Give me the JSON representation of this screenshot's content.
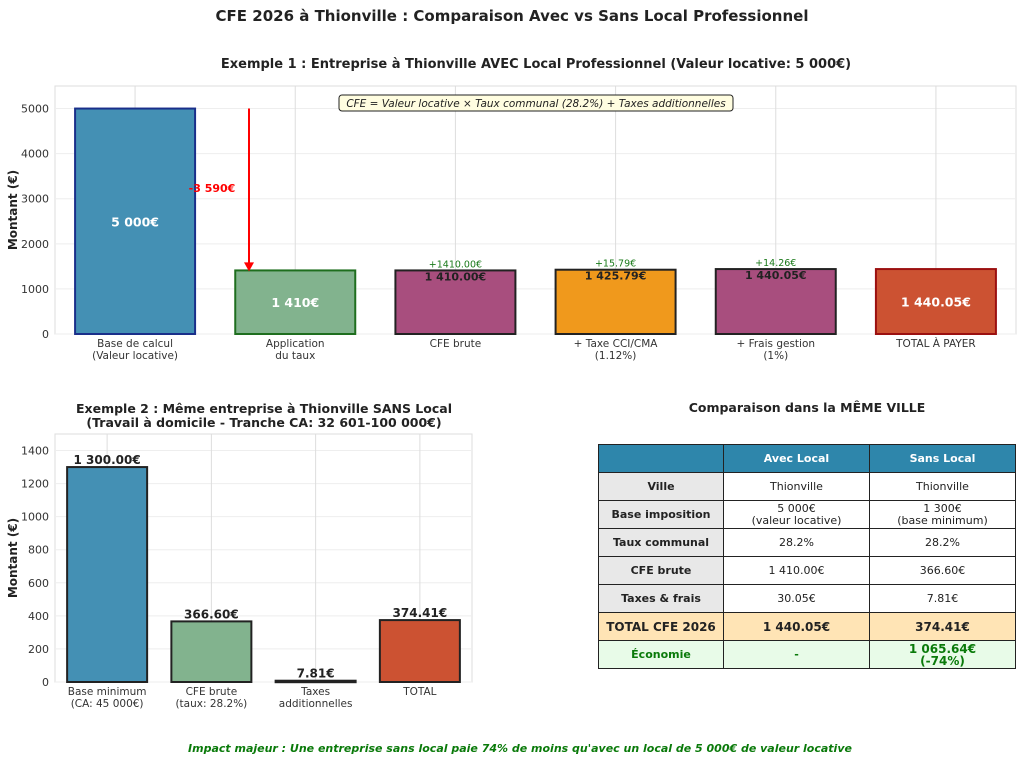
{
  "suptitle": "CFE 2026 à Thionville : Comparaison Avec vs Sans Local Professionnel",
  "footer_note": "Impact majeur : Une entreprise sans local paie 74% de moins qu'avec un local de 5 000€ de valeur locative",
  "chart_data": [
    {
      "type": "bar",
      "title": "Exemple 1 : Entreprise à Thionville AVEC Local Professionnel (Valeur locative: 5 000€)",
      "ylabel": "Montant (€)",
      "ylim": [
        0,
        5500
      ],
      "yticks": [
        "0",
        "1000",
        "2000",
        "3000",
        "4000",
        "5000"
      ],
      "grid": true,
      "categories": [
        "Base de calcul\n(Valeur locative)",
        "Application\ndu taux",
        "CFE brute",
        "+ Taxe CCI/CMA\n(1.12%)",
        "+ Frais gestion\n(1%)",
        "TOTAL À PAYER"
      ],
      "values": [
        5000,
        1410,
        1410,
        1425.79,
        1440.05,
        1440.05
      ],
      "colors": [
        "#4490b4",
        "#82b38e",
        "#a84e7e",
        "#f0991c",
        "#a84e7e",
        "#cc5232"
      ],
      "edge_colors": [
        "#1a2f8a",
        "#1e6e1e",
        "#222222",
        "#222222",
        "#222222",
        "#9b1010"
      ],
      "value_labels": [
        "5 000€",
        "1 410€",
        "1 410.00€",
        "1 425.79€",
        "1 440.05€",
        "1 440.05€"
      ],
      "increment_labels": [
        "",
        "",
        "+1410.00€",
        "+15.79€",
        "+14.26€",
        ""
      ],
      "arrow": {
        "from": 5000,
        "to": 1410,
        "label": "-3 590€",
        "color": "#ff0000"
      },
      "formula": "CFE = Valeur locative × Taux communal (28.2%) + Taxes additionnelles"
    },
    {
      "type": "bar",
      "title": "Exemple 2 : Même entreprise à Thionville SANS Local\n(Travail à domicile - Tranche CA: 32 601-100 000€)",
      "ylabel": "Montant (€)",
      "ylim": [
        0,
        1500
      ],
      "yticks": [
        "0",
        "200",
        "400",
        "600",
        "800",
        "1000",
        "1200",
        "1400"
      ],
      "grid": true,
      "categories": [
        "Base minimum\n(CA: 45 000€)",
        "CFE brute\n(taux: 28.2%)",
        "Taxes\nadditionnelles",
        "TOTAL"
      ],
      "values": [
        1300,
        366.6,
        7.81,
        374.41
      ],
      "colors": [
        "#4490b4",
        "#82b38e",
        "#333333",
        "#cc5232"
      ],
      "value_labels": [
        "1 300.00€",
        "366.60€",
        "7.81€",
        "374.41€"
      ]
    },
    {
      "type": "table",
      "title": "Comparaison dans la MÊME VILLE",
      "columns": [
        "",
        "Avec Local",
        "Sans Local"
      ],
      "rows": [
        [
          "Ville",
          "Thionville",
          "Thionville"
        ],
        [
          "Base imposition",
          "5 000€\n(valeur locative)",
          "1 300€\n(base minimum)"
        ],
        [
          "Taux communal",
          "28.2%",
          "28.2%"
        ],
        [
          "CFE brute",
          "1 410.00€",
          "366.60€"
        ],
        [
          "Taxes & frais",
          "30.05€",
          "7.81€"
        ],
        [
          "TOTAL CFE 2026",
          "1 440.05€",
          "374.41€"
        ],
        [
          "Économie",
          "-",
          "1 065.64€\n(-74%)"
        ]
      ],
      "colors": {
        "header": "#2e86ab",
        "label_col": "#e8e8e8",
        "total_row": "#ffe4b5",
        "economy_row": "#e8fbe8",
        "economy_text": "#0a7a0a"
      }
    }
  ]
}
